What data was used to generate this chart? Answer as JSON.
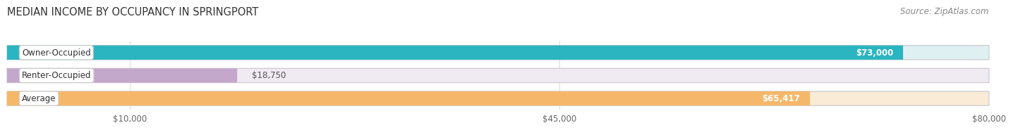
{
  "title": "MEDIAN INCOME BY OCCUPANCY IN SPRINGPORT",
  "source": "Source: ZipAtlas.com",
  "categories": [
    "Owner-Occupied",
    "Renter-Occupied",
    "Average"
  ],
  "values": [
    73000,
    18750,
    65417
  ],
  "labels": [
    "$73,000",
    "$18,750",
    "$65,417"
  ],
  "bar_colors": [
    "#2ab5c0",
    "#c4a8cc",
    "#f5b86a"
  ],
  "bar_bg_colors": [
    "#dff0f3",
    "#f0eaf3",
    "#faebd7"
  ],
  "xlim": [
    0,
    80000
  ],
  "xticks": [
    10000,
    45000,
    80000
  ],
  "xtick_labels": [
    "$10,000",
    "$45,000",
    "$80,000"
  ],
  "background_color": "#ffffff",
  "bar_height": 0.62,
  "title_fontsize": 10.5,
  "source_fontsize": 8.5,
  "label_fontsize": 8.5,
  "cat_fontsize": 8.5,
  "tick_fontsize": 8.5
}
